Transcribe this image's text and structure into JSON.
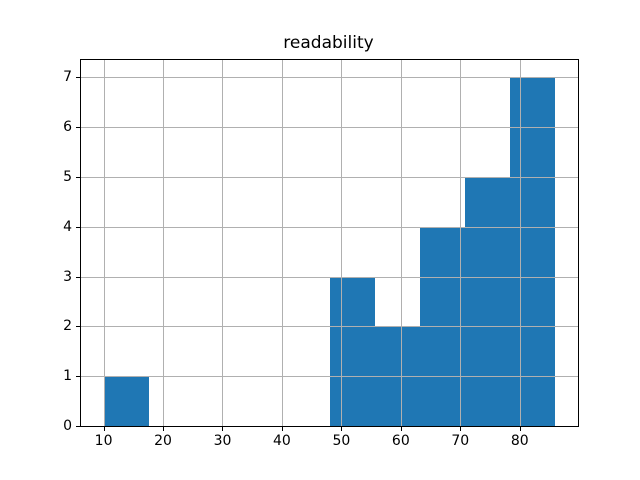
{
  "figure": {
    "background": "#ffffff"
  },
  "chart_data": {
    "type": "bar",
    "subtype": "histogram",
    "title": "readability",
    "xlabel": "",
    "ylabel": "",
    "bin_edges": [
      10,
      17.6,
      25.2,
      32.8,
      40.4,
      48,
      55.6,
      63.2,
      70.8,
      78.4,
      86
    ],
    "counts": [
      1,
      0,
      0,
      0,
      0,
      3,
      2,
      4,
      5,
      7
    ],
    "x_ticks": [
      10,
      20,
      30,
      40,
      50,
      60,
      70,
      80
    ],
    "y_ticks": [
      0,
      1,
      2,
      3,
      4,
      5,
      6,
      7
    ],
    "xlim": [
      6.2,
      89.8
    ],
    "ylim": [
      0,
      7.35
    ],
    "grid": true,
    "grid_above_bars": true,
    "legend": null,
    "bar_color": "#1f77b4",
    "grid_color": "#b0b0b0",
    "spine_color": "#000000",
    "text_color": "#000000"
  }
}
